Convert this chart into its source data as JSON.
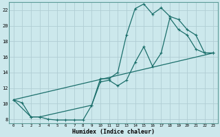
{
  "xlabel": "Humidex (Indice chaleur)",
  "bg_color": "#cce8ec",
  "line_color": "#1a6e6a",
  "grid_color": "#b0cdd4",
  "xlim": [
    -0.5,
    23.5
  ],
  "ylim": [
    7.5,
    23.0
  ],
  "yticks": [
    8,
    10,
    12,
    14,
    16,
    18,
    20,
    22
  ],
  "xticks": [
    0,
    1,
    2,
    3,
    4,
    5,
    6,
    7,
    8,
    9,
    10,
    11,
    12,
    13,
    14,
    15,
    16,
    17,
    18,
    19,
    20,
    21,
    22,
    23
  ],
  "line1_x": [
    0,
    1,
    2,
    3,
    4,
    5,
    6,
    7,
    8,
    9,
    10,
    11,
    12,
    13,
    14,
    15,
    16,
    17,
    18,
    19,
    20,
    21,
    22,
    23
  ],
  "line1_y": [
    10.5,
    10.1,
    8.3,
    8.3,
    8.0,
    7.9,
    7.9,
    7.9,
    7.9,
    9.8,
    12.8,
    13.0,
    12.3,
    13.0,
    15.3,
    17.3,
    14.8,
    16.5,
    21.0,
    19.5,
    18.8,
    17.0,
    16.5,
    16.5
  ],
  "line2_x": [
    0,
    2,
    3,
    9,
    10,
    11,
    12,
    13,
    14,
    15,
    16,
    17,
    18,
    19,
    20,
    21,
    22,
    23
  ],
  "line2_y": [
    10.5,
    8.3,
    8.3,
    9.8,
    13.2,
    13.2,
    14.0,
    18.8,
    22.2,
    22.8,
    21.5,
    22.3,
    21.2,
    20.8,
    19.5,
    18.8,
    16.5,
    16.5
  ],
  "line3_x": [
    0,
    23
  ],
  "line3_y": [
    10.5,
    16.5
  ]
}
